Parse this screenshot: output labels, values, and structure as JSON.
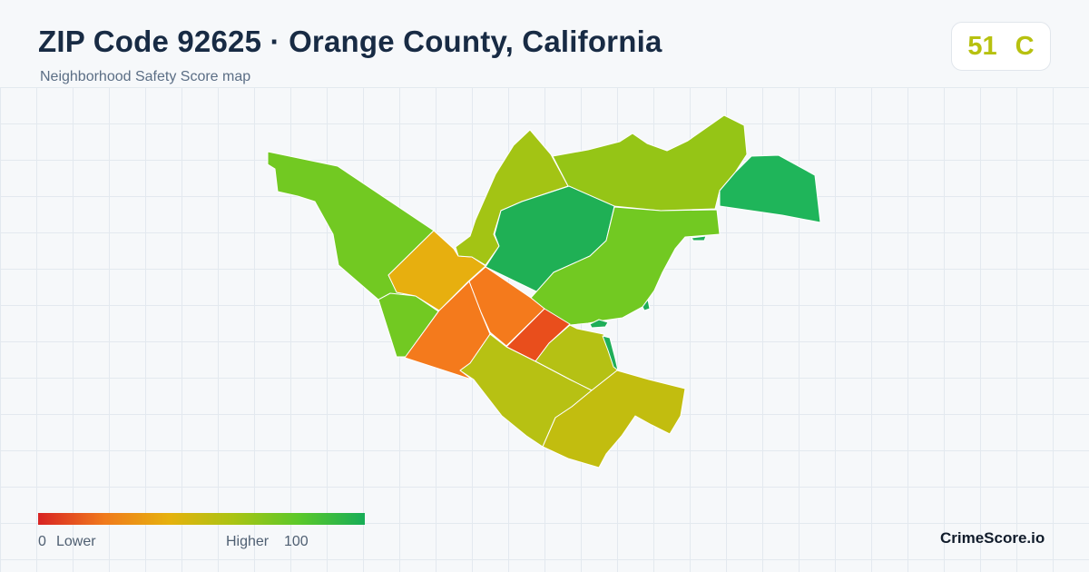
{
  "header": {
    "title": "ZIP Code 92625 · Orange County, California",
    "subtitle": "Neighborhood Safety Score map"
  },
  "score": {
    "value": "51",
    "grade": "C",
    "color": "#b7c10f"
  },
  "legend": {
    "min_value": "0",
    "low_label": "Lower",
    "high_label": "Higher",
    "max_value": "100",
    "scale_colors": [
      "#d82323",
      "#f0791c",
      "#e6b10d",
      "#a9c413",
      "#5ac82a",
      "#17ad57"
    ]
  },
  "brand": "CrimeScore.io",
  "map": {
    "regions": [
      {
        "name": "region-northwest",
        "color": "#72c922"
      },
      {
        "name": "region-west",
        "color": "#72c922"
      },
      {
        "name": "region-west-center",
        "color": "#e7af0f"
      },
      {
        "name": "region-north-narrow",
        "color": "#a3c414"
      },
      {
        "name": "region-north",
        "color": "#95c516"
      },
      {
        "name": "region-northeast",
        "color": "#1fb55a"
      },
      {
        "name": "region-north-center",
        "color": "#1fb055"
      },
      {
        "name": "region-east-center",
        "color": "#72c922"
      },
      {
        "name": "region-center",
        "color": "#f47a1c"
      },
      {
        "name": "region-southwest",
        "color": "#f47a1c"
      },
      {
        "name": "region-center-red",
        "color": "#e94e1c"
      },
      {
        "name": "region-south-center",
        "color": "#b5c114"
      },
      {
        "name": "region-south",
        "color": "#b7c113"
      },
      {
        "name": "region-southeast",
        "color": "#c2bd0f"
      },
      {
        "name": "region-east-sliver-1",
        "color": "#1fae58"
      },
      {
        "name": "region-east-sliver-2",
        "color": "#1fae58"
      },
      {
        "name": "region-east-sliver-3",
        "color": "#1fae58"
      },
      {
        "name": "region-east-sliver-4",
        "color": "#1fae58"
      }
    ]
  }
}
